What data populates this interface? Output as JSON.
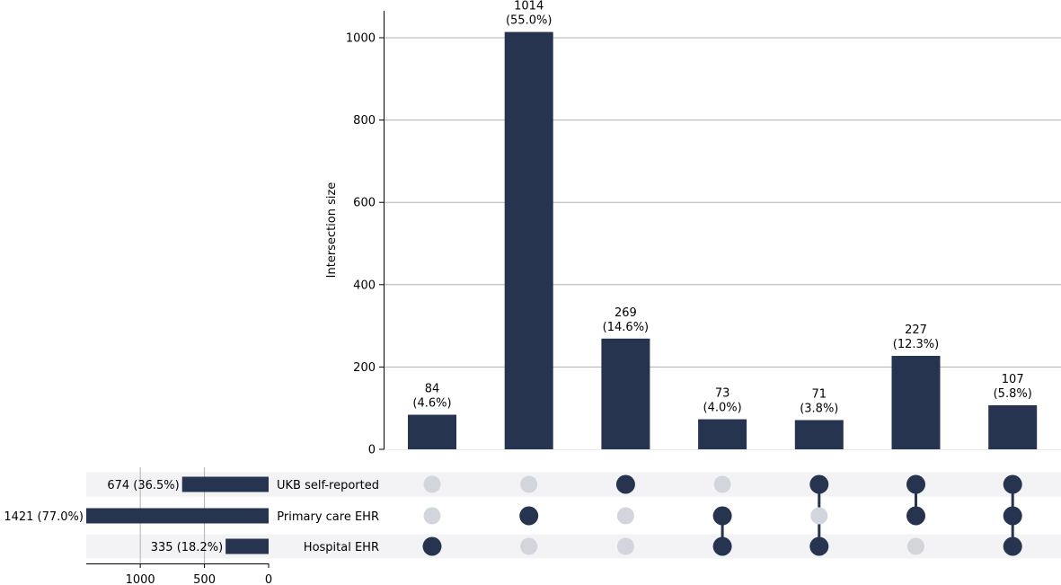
{
  "chart_data": {
    "type": "upset",
    "bar_color": "#263450",
    "inactive_dot_color": "#d2d5dc",
    "stripe_color": "#f3f3f5",
    "intersection_ylabel": "Intersection size",
    "intersection_yticks": [
      "0",
      "200",
      "400",
      "600",
      "800",
      "1000"
    ],
    "intersection_ylim": [
      0,
      1065
    ],
    "sets": [
      {
        "name": "UKB self-reported",
        "size": 674,
        "label": "674 (36.5%)"
      },
      {
        "name": "Primary care EHR",
        "size": 1421,
        "label": "1421 (77.0%)"
      },
      {
        "name": "Hospital EHR",
        "size": 335,
        "label": "335 (18.2%)"
      }
    ],
    "set_size_xticks": [
      "1000",
      "500",
      "0"
    ],
    "set_size_xlim": [
      0,
      1421
    ],
    "intersections": [
      {
        "value": 84,
        "count_label": "84",
        "pct_label": "(4.6%)",
        "members": [
          false,
          false,
          true
        ]
      },
      {
        "value": 1014,
        "count_label": "1014",
        "pct_label": "(55.0%)",
        "members": [
          false,
          true,
          false
        ]
      },
      {
        "value": 269,
        "count_label": "269",
        "pct_label": "(14.6%)",
        "members": [
          true,
          false,
          false
        ]
      },
      {
        "value": 73,
        "count_label": "73",
        "pct_label": "(4.0%)",
        "members": [
          false,
          true,
          true
        ]
      },
      {
        "value": 71,
        "count_label": "71",
        "pct_label": "(3.8%)",
        "members": [
          true,
          false,
          true
        ]
      },
      {
        "value": 227,
        "count_label": "227",
        "pct_label": "(12.3%)",
        "members": [
          true,
          true,
          false
        ]
      },
      {
        "value": 107,
        "count_label": "107",
        "pct_label": "(5.8%)",
        "members": [
          true,
          true,
          true
        ]
      }
    ]
  }
}
